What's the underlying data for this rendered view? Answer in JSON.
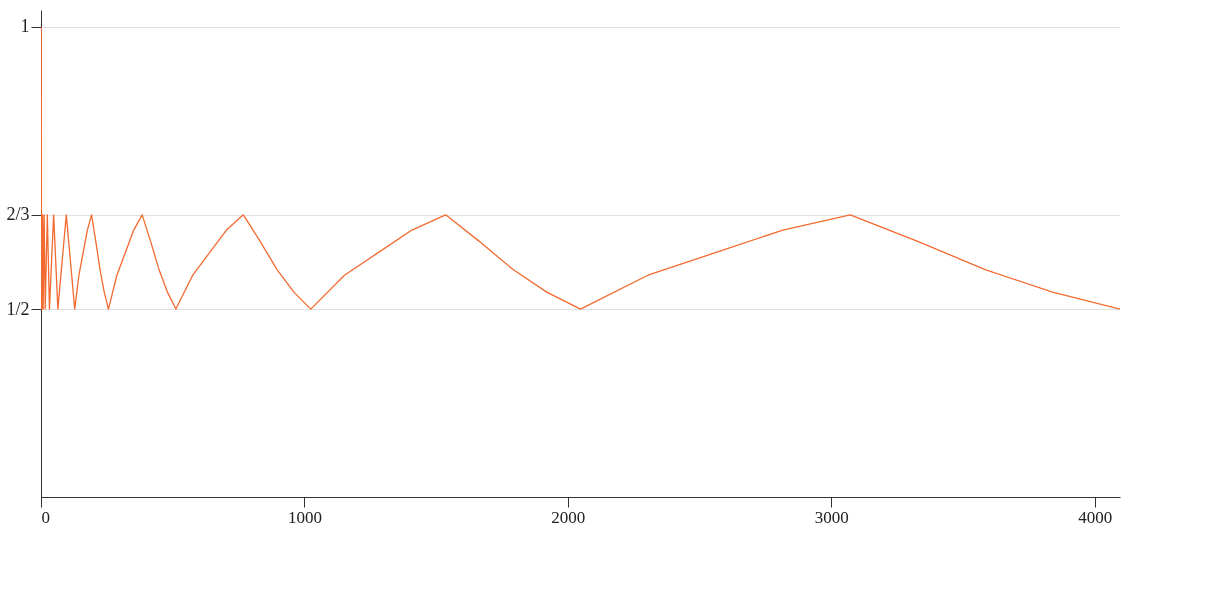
{
  "chart_data": {
    "type": "line",
    "xlim": [
      0,
      4096
    ],
    "ylim": [
      0.167,
      1.03
    ],
    "xticks": [
      0,
      1000,
      2000,
      3000,
      4000
    ],
    "yticks": [
      {
        "value": 0.5,
        "label": "1/2"
      },
      {
        "value": 0.667,
        "label": "2/3"
      },
      {
        "value": 1,
        "label": "1"
      }
    ],
    "grid": "y",
    "marker": "none",
    "line_style": "solid",
    "series": [
      {
        "color": "#f26a30",
        "x": [
          1,
          2,
          3,
          4,
          6,
          8,
          12,
          16,
          24,
          32,
          48,
          64,
          96,
          128,
          144,
          160,
          176,
          192,
          208,
          224,
          240,
          256,
          288,
          320,
          352,
          384,
          416,
          448,
          480,
          512,
          576,
          640,
          704,
          768,
          832,
          896,
          960,
          1024,
          1152,
          1280,
          1408,
          1536,
          1664,
          1792,
          1920,
          2048,
          2304,
          2560,
          2816,
          3072,
          3328,
          3584,
          3840,
          4096
        ],
        "values": [
          1,
          0.5,
          0.667,
          0.5,
          0.667,
          0.5,
          0.667,
          0.5,
          0.667,
          0.5,
          0.667,
          0.5,
          0.667,
          0.5,
          0.56,
          0.6,
          0.64,
          0.667,
          0.62,
          0.57,
          0.53,
          0.5,
          0.56,
          0.6,
          0.64,
          0.667,
          0.62,
          0.57,
          0.53,
          0.5,
          0.56,
          0.6,
          0.64,
          0.667,
          0.62,
          0.57,
          0.53,
          0.5,
          0.56,
          0.6,
          0.64,
          0.667,
          0.62,
          0.57,
          0.53,
          0.5,
          0.56,
          0.6,
          0.64,
          0.667,
          0.62,
          0.57,
          0.53,
          0.5
        ]
      }
    ]
  }
}
